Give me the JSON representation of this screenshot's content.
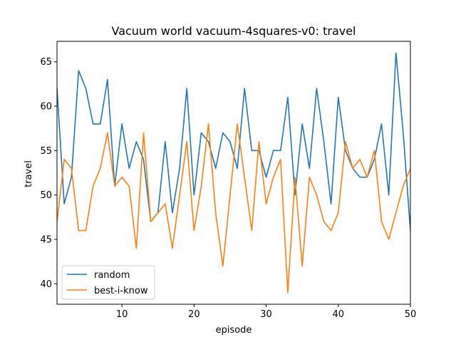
{
  "chart_data": {
    "type": "line",
    "title": "Vacuum world vacuum-4squares-v0: travel",
    "xlabel": "episode",
    "ylabel": "travel",
    "xlim": [
      1,
      50
    ],
    "ylim": [
      37.7,
      67.3
    ],
    "xticks": [
      10,
      20,
      30,
      40,
      50
    ],
    "yticks": [
      40,
      45,
      50,
      55,
      60,
      65
    ],
    "legend_position": "lower-left",
    "grid": false,
    "x": [
      1,
      2,
      3,
      4,
      5,
      6,
      7,
      8,
      9,
      10,
      11,
      12,
      13,
      14,
      15,
      16,
      17,
      18,
      19,
      20,
      21,
      22,
      23,
      24,
      25,
      26,
      27,
      28,
      29,
      30,
      31,
      32,
      33,
      34,
      35,
      36,
      37,
      38,
      39,
      40,
      41,
      42,
      43,
      44,
      45,
      46,
      47,
      48,
      49,
      50
    ],
    "series": [
      {
        "name": "random",
        "color": "#1f77b4",
        "values": [
          62,
          49,
          52,
          64,
          62,
          58,
          58,
          63,
          51,
          58,
          53,
          56,
          54,
          47,
          48,
          56,
          48,
          53,
          62,
          50,
          57,
          56,
          53,
          57,
          56,
          53,
          62,
          55,
          55,
          52,
          55,
          55,
          61,
          50,
          58,
          53,
          62,
          56,
          49,
          61,
          55,
          53,
          52,
          52,
          54,
          58,
          50,
          66,
          57,
          46
        ]
      },
      {
        "name": "best-i-know",
        "color": "#ff7f0e",
        "values": [
          47,
          54,
          53,
          46,
          46,
          51,
          53,
          57,
          51,
          52,
          51,
          44,
          57,
          47,
          48,
          49,
          44,
          50,
          56,
          46,
          51,
          58,
          48,
          42,
          50,
          58,
          52,
          46,
          56,
          49,
          52,
          54,
          39,
          52,
          42,
          52,
          50,
          47,
          46,
          48,
          56,
          53,
          54,
          52,
          55,
          47,
          45,
          48,
          51,
          53
        ]
      }
    ]
  }
}
